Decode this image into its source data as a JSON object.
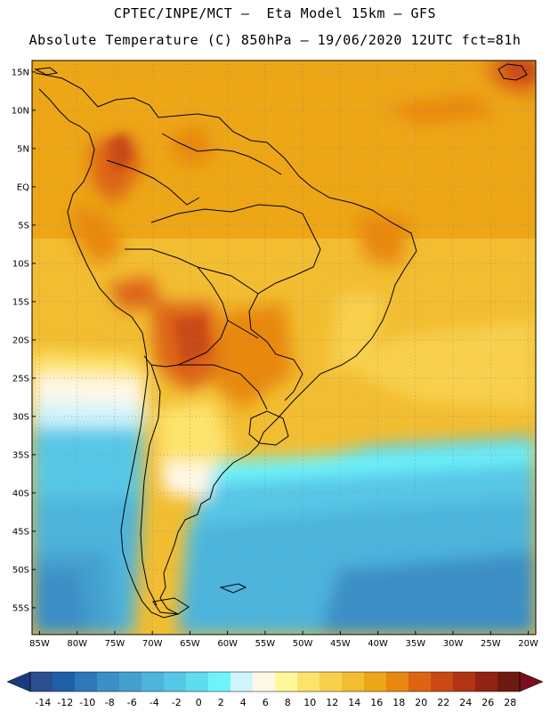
{
  "header": {
    "line1": "CPTEC/INPE/MCT –  Eta Model 15km – GFS",
    "line2": "Absolute Temperature (C) 850hPa – 19/06/2020 12UTC fct=81h"
  },
  "map": {
    "region": "South America",
    "lon_range": [
      -86,
      -19
    ],
    "lat_range": [
      -58.5,
      16.5
    ],
    "gridlines": "dotted",
    "lat_ticks": [
      {
        "value": 15,
        "label": "15N"
      },
      {
        "value": 10,
        "label": "10N"
      },
      {
        "value": 5,
        "label": "5N"
      },
      {
        "value": 0,
        "label": "EQ"
      },
      {
        "value": -5,
        "label": "5S"
      },
      {
        "value": -10,
        "label": "10S"
      },
      {
        "value": -15,
        "label": "15S"
      },
      {
        "value": -20,
        "label": "20S"
      },
      {
        "value": -25,
        "label": "25S"
      },
      {
        "value": -30,
        "label": "30S"
      },
      {
        "value": -35,
        "label": "35S"
      },
      {
        "value": -40,
        "label": "40S"
      },
      {
        "value": -45,
        "label": "45S"
      },
      {
        "value": -50,
        "label": "50S"
      },
      {
        "value": -55,
        "label": "55S"
      }
    ],
    "lon_ticks": [
      {
        "value": -85,
        "label": "85W"
      },
      {
        "value": -80,
        "label": "80W"
      },
      {
        "value": -75,
        "label": "75W"
      },
      {
        "value": -70,
        "label": "70W"
      },
      {
        "value": -65,
        "label": "65W"
      },
      {
        "value": -60,
        "label": "60W"
      },
      {
        "value": -55,
        "label": "55W"
      },
      {
        "value": -50,
        "label": "50W"
      },
      {
        "value": -45,
        "label": "45W"
      },
      {
        "value": -40,
        "label": "40W"
      },
      {
        "value": -35,
        "label": "35W"
      },
      {
        "value": -30,
        "label": "30W"
      },
      {
        "value": -25,
        "label": "25W"
      },
      {
        "value": -20,
        "label": "20W"
      }
    ]
  },
  "colorbar": {
    "labels": [
      "-14",
      "-12",
      "-10",
      "-8",
      "-6",
      "-4",
      "-2",
      "0",
      "2",
      "4",
      "6",
      "8",
      "10",
      "12",
      "14",
      "16",
      "18",
      "20",
      "22",
      "24",
      "26",
      "28"
    ],
    "colors": [
      "#2b4e8e",
      "#1f5fa6",
      "#2c78b8",
      "#3a8fc6",
      "#44a1cf",
      "#4db4dc",
      "#56c7e6",
      "#5fdcee",
      "#6ef3fb",
      "#d0f4fb",
      "#fff8e6",
      "#fff79a",
      "#fde36c",
      "#f8d04e",
      "#f2bd31",
      "#eda616",
      "#e8880f",
      "#dd6412",
      "#c84a12",
      "#b23413",
      "#932312",
      "#6f1a10"
    ],
    "under_color": "#1a3a80",
    "over_color": "#7a0e1e"
  }
}
